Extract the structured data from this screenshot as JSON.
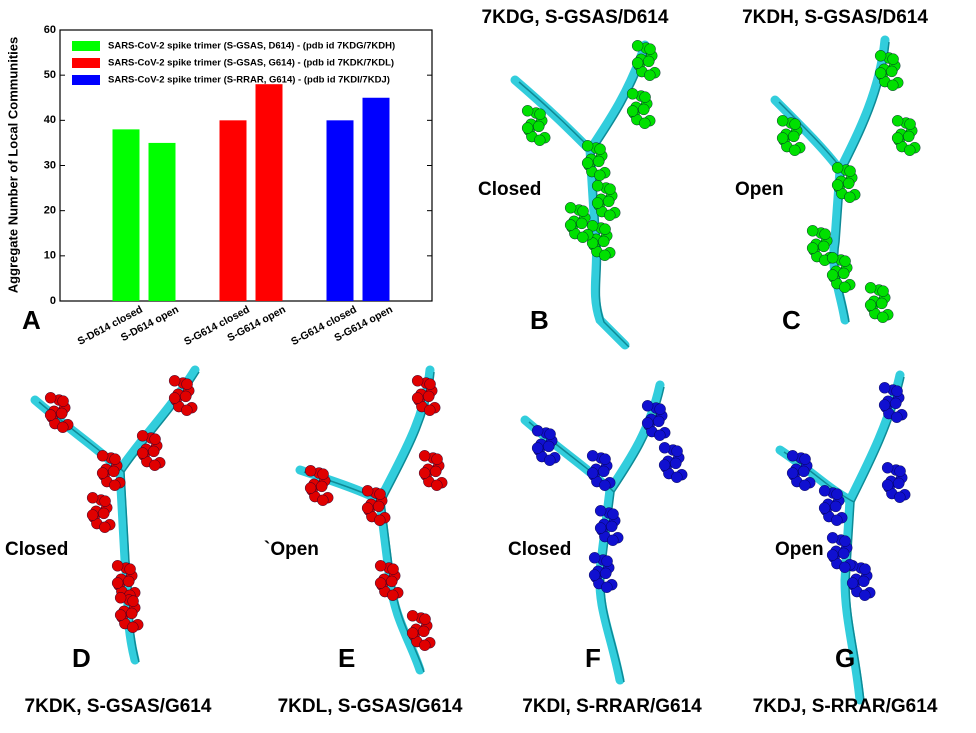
{
  "chart_data": {
    "type": "bar",
    "ylabel": "Aggregate Number of Local Communities",
    "categories": [
      "S-D614 closed",
      "S-D614 open",
      "S-G614 closed",
      "S-G614 open",
      "S-G614 closed",
      "S-G614 open"
    ],
    "series": [
      {
        "name": "SARS-CoV-2 spike trimer (S-GSAS, D614) - (pdb id 7KDG/7KDH)",
        "color": "#00ff00",
        "values": [
          38,
          35,
          null,
          null,
          null,
          null
        ]
      },
      {
        "name": "SARS-CoV-2 spike trimer (S-GSAS, G614) - (pdb id 7KDK/7KDL)",
        "color": "#ff0000",
        "values": [
          null,
          null,
          40,
          48,
          null,
          null
        ]
      },
      {
        "name": "SARS-CoV-2 spike trimer (S-RRAR, G614) - (pdb id 7KDI/7KDJ)",
        "color": "#0000ff",
        "values": [
          null,
          null,
          null,
          null,
          40,
          45
        ]
      }
    ],
    "ylim": [
      0,
      60
    ],
    "yticks": [
      0,
      10,
      20,
      30,
      40,
      50,
      60
    ],
    "legend": "upper left"
  },
  "panels": [
    {
      "letter": "A"
    },
    {
      "letter": "B",
      "title": "7KDG, S-GSAS/D614",
      "state": "Closed"
    },
    {
      "letter": "C",
      "title": "7KDH, S-GSAS/D614",
      "state": "Open"
    },
    {
      "letter": "D",
      "title": "7KDK, S-GSAS/G614",
      "state": "Closed"
    },
    {
      "letter": "E",
      "title": "7KDL, S-GSAS/G614",
      "state": "`Open"
    },
    {
      "letter": "F",
      "title": "7KDI, S-RRAR/G614",
      "state": "Closed"
    },
    {
      "letter": "G",
      "title": "7KDJ, S-RRAR/G614",
      "state": "Open"
    }
  ]
}
